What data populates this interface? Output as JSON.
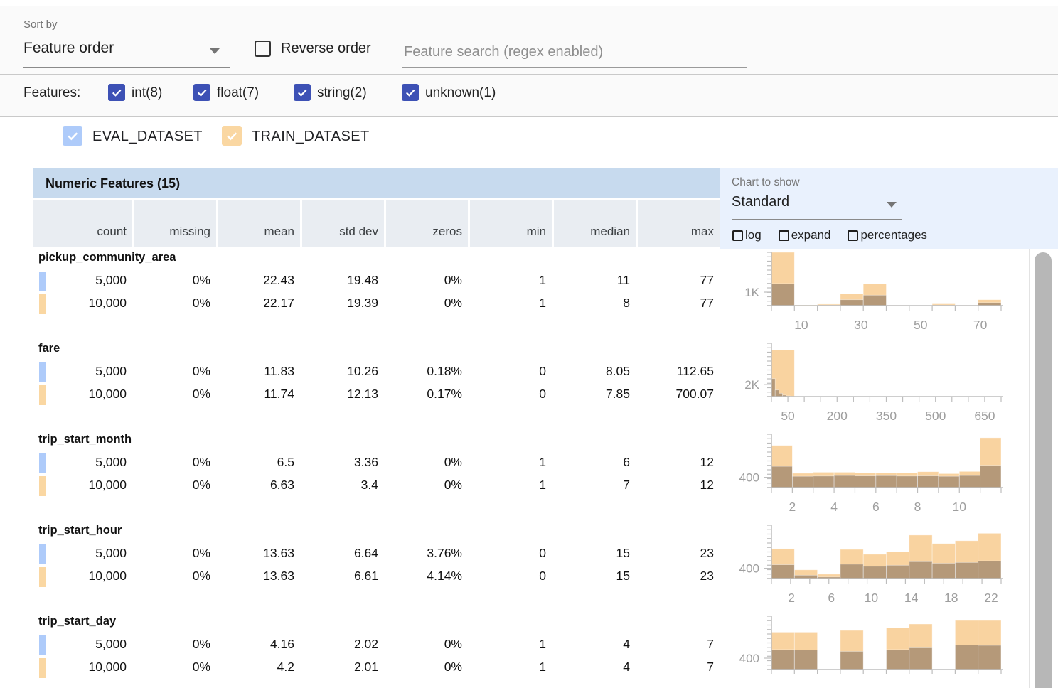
{
  "toolbar": {
    "sort_by_label": "Sort by",
    "sort_value": "Feature order",
    "reverse_label": "Reverse order",
    "search_placeholder": "Feature search (regex enabled)"
  },
  "features_filter": {
    "label": "Features:",
    "checkbox_color": "#3d51b5",
    "options": [
      {
        "label": "int(8)",
        "checked": true
      },
      {
        "label": "float(7)",
        "checked": true
      },
      {
        "label": "string(2)",
        "checked": true
      },
      {
        "label": "unknown(1)",
        "checked": true
      }
    ]
  },
  "datasets": [
    {
      "name": "EVAL_DATASET",
      "checked": true,
      "color": "#aecbfa"
    },
    {
      "name": "TRAIN_DATASET",
      "checked": true,
      "color": "#fad7a2"
    }
  ],
  "chart_controls": {
    "label": "Chart to show",
    "selected": "Standard",
    "toggles": [
      {
        "label": "log",
        "checked": false
      },
      {
        "label": "expand",
        "checked": false
      },
      {
        "label": "percentages",
        "checked": false
      }
    ]
  },
  "table": {
    "title": "Numeric Features (15)",
    "columns": [
      "count",
      "missing",
      "mean",
      "std dev",
      "zeros",
      "min",
      "median",
      "max"
    ],
    "rows": [
      {
        "feature": "pickup_community_area",
        "eval": [
          "5,000",
          "0%",
          "22.43",
          "19.48",
          "0%",
          "1",
          "11",
          "77"
        ],
        "train": [
          "10,000",
          "0%",
          "22.17",
          "19.39",
          "0%",
          "1",
          "8",
          "77"
        ]
      },
      {
        "feature": "fare",
        "eval": [
          "5,000",
          "0%",
          "11.83",
          "10.26",
          "0.18%",
          "0",
          "8.05",
          "112.65"
        ],
        "train": [
          "10,000",
          "0%",
          "11.74",
          "12.13",
          "0.17%",
          "0",
          "7.85",
          "700.07"
        ]
      },
      {
        "feature": "trip_start_month",
        "eval": [
          "5,000",
          "0%",
          "6.5",
          "3.36",
          "0%",
          "1",
          "6",
          "12"
        ],
        "train": [
          "10,000",
          "0%",
          "6.63",
          "3.4",
          "0%",
          "1",
          "7",
          "12"
        ]
      },
      {
        "feature": "trip_start_hour",
        "eval": [
          "5,000",
          "0%",
          "13.63",
          "6.64",
          "3.76%",
          "0",
          "15",
          "23"
        ],
        "train": [
          "10,000",
          "0%",
          "13.63",
          "6.61",
          "4.14%",
          "0",
          "15",
          "23"
        ]
      },
      {
        "feature": "trip_start_day",
        "eval": [
          "5,000",
          "0%",
          "4.16",
          "2.02",
          "0%",
          "1",
          "4",
          "7"
        ],
        "train": [
          "10,000",
          "0%",
          "4.2",
          "2.01",
          "0%",
          "1",
          "4",
          "7"
        ]
      }
    ]
  },
  "chart_data": [
    {
      "type": "bar",
      "feature": "pickup_community_area",
      "xmin": 0,
      "xmax": 77,
      "xticks": [
        10,
        30,
        50,
        70
      ],
      "minor_divisions": 10,
      "ylabel": "1K",
      "ylabel_value": 1000,
      "ymax": 3950,
      "series": [
        {
          "name": "TRAIN_DATASET",
          "bin_width": 7.7,
          "values": [
            3950,
            50,
            110,
            890,
            1615,
            30,
            20,
            130,
            30,
            440
          ]
        },
        {
          "name": "EVAL_DATASET",
          "bin_width": 7.7,
          "values": [
            1630,
            20,
            45,
            437,
            775,
            10,
            8,
            45,
            12,
            220
          ]
        }
      ]
    },
    {
      "type": "bar",
      "feature": "fare",
      "xmin": 0,
      "xmax": 700,
      "xticks": [
        50,
        200,
        350,
        500,
        650
      ],
      "minor_divisions": 14,
      "ylabel": "2K",
      "ylabel_value": 2000,
      "ymax": 8900,
      "series": [
        {
          "name": "TRAIN_DATASET",
          "bin_width": 70,
          "values": [
            7800,
            0,
            0,
            0,
            0,
            0,
            0,
            0,
            0,
            0
          ]
        },
        {
          "name": "EVAL_DATASET",
          "bin_width": 11.27,
          "values": [
            3000,
            1100,
            550,
            250,
            120,
            60,
            0,
            0,
            0,
            0
          ]
        }
      ]
    },
    {
      "type": "bar",
      "feature": "trip_start_month",
      "xmin": 1,
      "xmax": 12,
      "xticks": [
        2,
        4,
        6,
        8,
        10
      ],
      "minor_divisions": 11,
      "ylabel": "400",
      "ylabel_value": 400,
      "ymax": 2086,
      "series": [
        {
          "name": "TRAIN_DATASET",
          "bin_width": 1,
          "values": [
            1650,
            560,
            600,
            600,
            580,
            570,
            575,
            620,
            545,
            630,
            1950
          ]
        },
        {
          "name": "EVAL_DATASET",
          "bin_width": 1,
          "values": [
            830,
            440,
            450,
            470,
            455,
            465,
            450,
            455,
            440,
            470,
            870
          ]
        }
      ]
    },
    {
      "type": "bar",
      "feature": "trip_start_hour",
      "xmin": 0,
      "xmax": 23,
      "xticks": [
        2,
        6,
        10,
        14,
        18,
        22
      ],
      "minor_divisions": 12,
      "ylabel": "400",
      "ylabel_value": 400,
      "ymax": 2086,
      "series": [
        {
          "name": "TRAIN_DATASET",
          "bin_width": 2.3,
          "values": [
            1170,
            340,
            170,
            1140,
            950,
            1050,
            1700,
            1370,
            1480,
            1770
          ]
        },
        {
          "name": "EVAL_DATASET",
          "bin_width": 2.3,
          "values": [
            540,
            130,
            60,
            560,
            480,
            520,
            660,
            600,
            630,
            690
          ]
        }
      ]
    },
    {
      "type": "bar",
      "feature": "trip_start_day",
      "xmin": 1,
      "xmax": 7,
      "xticks": [],
      "minor_divisions": 10,
      "ylabel": "400",
      "ylabel_value": 400,
      "ymax": 1875,
      "series": [
        {
          "name": "TRAIN_DATASET",
          "bin_width": 0.6,
          "values": [
            1315,
            1315,
            0,
            1375,
            0,
            1475,
            1600,
            0,
            1725,
            1725
          ]
        },
        {
          "name": "EVAL_DATASET",
          "bin_width": 0.6,
          "values": [
            700,
            690,
            0,
            640,
            0,
            700,
            765,
            0,
            865,
            850
          ]
        }
      ]
    }
  ],
  "style": {
    "train_bar_color": "#f9d3a0",
    "eval_overlay_color": "rgba(97,83,74,0.45)",
    "axis_color": "#bdbdbd",
    "axis_text_color": "#9e9e9e"
  }
}
